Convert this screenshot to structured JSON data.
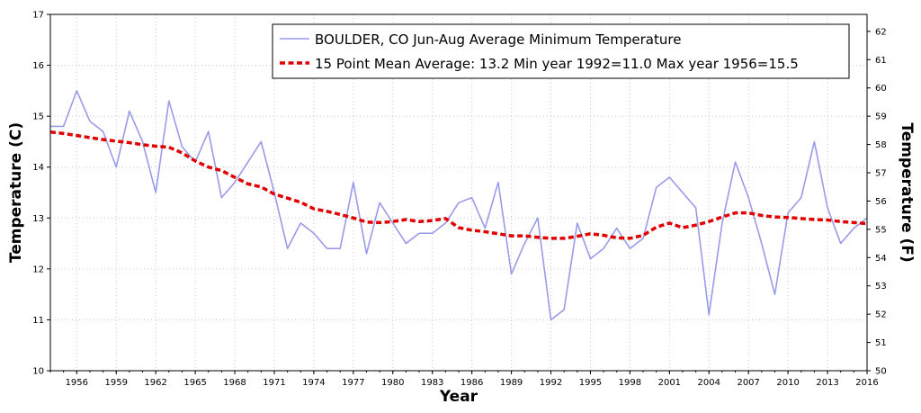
{
  "chart_data": {
    "type": "line",
    "xlabel": "Year",
    "ylabel": "Temperature (C)",
    "ylabel_right": "Temperature (F)",
    "xlim": [
      1954,
      2016
    ],
    "ylim": [
      10,
      17
    ],
    "ylim_right": [
      50,
      62.6
    ],
    "x_ticks": [
      1956,
      1959,
      1962,
      1965,
      1968,
      1971,
      1974,
      1977,
      1980,
      1983,
      1986,
      1989,
      1992,
      1995,
      1998,
      2001,
      2004,
      2007,
      2010,
      2013,
      2016
    ],
    "y_ticks": [
      10,
      11,
      12,
      13,
      14,
      15,
      16,
      17
    ],
    "y_ticks_right": [
      50,
      51,
      52,
      53,
      54,
      55,
      56,
      57,
      58,
      59,
      60,
      61,
      62
    ],
    "grid": true,
    "legend_position": "top-right",
    "series": [
      {
        "name": "BOULDER, CO  Jun-Aug  Average Minimum Temperature",
        "color": "#9a9aea",
        "style": "solid",
        "x": [
          1954,
          1955,
          1956,
          1957,
          1958,
          1959,
          1960,
          1961,
          1962,
          1963,
          1964,
          1965,
          1966,
          1967,
          1968,
          1969,
          1970,
          1971,
          1972,
          1973,
          1974,
          1975,
          1976,
          1977,
          1978,
          1979,
          1980,
          1981,
          1982,
          1983,
          1984,
          1985,
          1986,
          1987,
          1988,
          1989,
          1990,
          1991,
          1992,
          1993,
          1994,
          1995,
          1996,
          1997,
          1998,
          1999,
          2000,
          2001,
          2002,
          2003,
          2004,
          2005,
          2006,
          2007,
          2008,
          2009,
          2010,
          2011,
          2012,
          2013,
          2014,
          2015,
          2016
        ],
        "values": [
          14.8,
          14.8,
          15.5,
          14.9,
          14.7,
          14.0,
          15.1,
          14.5,
          13.5,
          15.3,
          14.4,
          14.1,
          14.7,
          13.4,
          13.7,
          14.1,
          14.5,
          13.5,
          12.4,
          12.9,
          12.7,
          12.4,
          12.4,
          13.7,
          12.3,
          13.3,
          12.9,
          12.5,
          12.7,
          12.7,
          12.9,
          13.3,
          13.4,
          12.8,
          13.7,
          11.9,
          12.5,
          13.0,
          11.0,
          11.2,
          12.9,
          12.2,
          12.4,
          12.8,
          12.4,
          12.6,
          13.6,
          13.8,
          13.5,
          13.2,
          11.1,
          12.9,
          14.1,
          13.4,
          12.5,
          11.5,
          13.1,
          13.4,
          14.5,
          13.2,
          12.5,
          12.8,
          13.0
        ]
      },
      {
        "name": "15 Point Mean  Average: 13.2  Min year 1992=11.0  Max year 1956=15.5",
        "color": "#e00000",
        "style": "dashed",
        "x": [
          1954,
          1955,
          1956,
          1957,
          1958,
          1959,
          1960,
          1961,
          1962,
          1963,
          1964,
          1965,
          1966,
          1967,
          1968,
          1969,
          1970,
          1971,
          1972,
          1973,
          1974,
          1975,
          1976,
          1977,
          1978,
          1979,
          1980,
          1981,
          1982,
          1983,
          1984,
          1985,
          1986,
          1987,
          1988,
          1989,
          1990,
          1991,
          1992,
          1993,
          1994,
          1995,
          1996,
          1997,
          1998,
          1999,
          2000,
          2001,
          2002,
          2003,
          2004,
          2005,
          2006,
          2007,
          2008,
          2009,
          2010,
          2011,
          2012,
          2013,
          2014,
          2015,
          2016
        ],
        "values": [
          14.69,
          14.66,
          14.62,
          14.58,
          14.54,
          14.51,
          14.48,
          14.44,
          14.41,
          14.39,
          14.28,
          14.12,
          14.0,
          13.93,
          13.8,
          13.67,
          13.61,
          13.47,
          13.39,
          13.31,
          13.18,
          13.13,
          13.07,
          13.0,
          12.92,
          12.91,
          12.93,
          12.97,
          12.93,
          12.95,
          12.99,
          12.81,
          12.76,
          12.73,
          12.69,
          12.65,
          12.65,
          12.62,
          12.6,
          12.6,
          12.64,
          12.69,
          12.66,
          12.61,
          12.6,
          12.66,
          12.82,
          12.9,
          12.81,
          12.86,
          12.93,
          13.02,
          13.1,
          13.1,
          13.05,
          13.02,
          13.01,
          12.99,
          12.97,
          12.96,
          12.93,
          12.91,
          12.89
        ]
      }
    ]
  }
}
